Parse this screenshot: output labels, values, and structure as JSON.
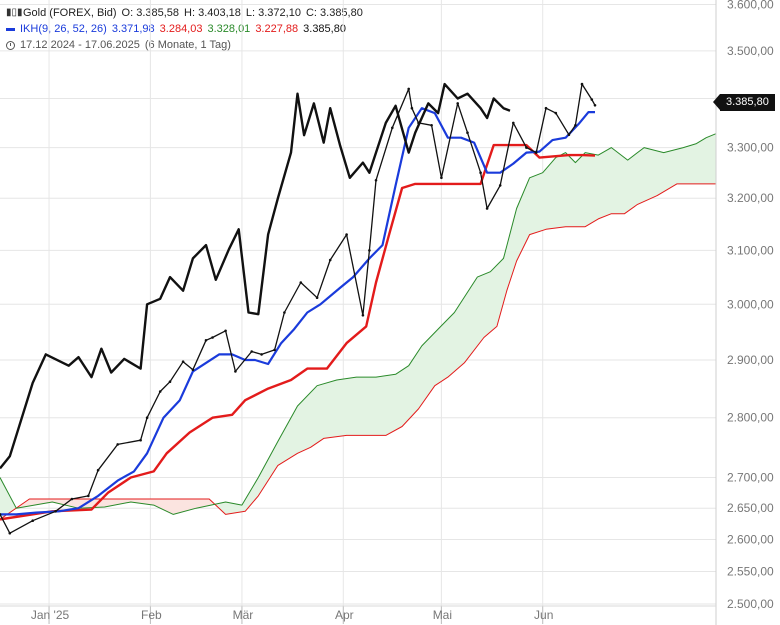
{
  "legend": {
    "instrument": "Gold (FOREX, Bid)",
    "o": "O: 3.385,58",
    "h": "H: 3.403,18",
    "l": "L: 3.372,10",
    "c": "C: 3.385,80",
    "ikh_name": "IKH(9, 26, 52, 26)",
    "ikh_v1": "3.371,98",
    "ikh_v2": "3.284,03",
    "ikh_v3": "3.328,01",
    "ikh_v4": "3.227,88",
    "ikh_v5": "3.385,80",
    "range": "17.12.2024 - 17.06.2025",
    "period": "(6 Monate, 1 Tag)"
  },
  "price_tag": "3.385,80",
  "colors": {
    "price": "#111111",
    "tenkan": "#1a3bdb",
    "kijun": "#e31b1b",
    "span_a": "#2a8a2a",
    "span_b": "#e31b1b",
    "cloud_bull": "#e3f3e3",
    "cloud_bear": "#fbe4e0",
    "grid": "#e6e6e6",
    "axis_text": "#777777"
  },
  "chart_data": {
    "type": "line",
    "title": "Gold (FOREX, Bid)",
    "y_axis": {
      "ticks": [
        2500,
        2550,
        2600,
        2650,
        2700,
        2800,
        2900,
        3000,
        3100,
        3200,
        3300,
        3400,
        3500,
        3600
      ],
      "tick_labels": [
        "2.500,00",
        "2.550,00",
        "2.600,00",
        "2.650,00",
        "2.700,00",
        "2.800,00",
        "2.900,00",
        "3.000,00",
        "3.100,00",
        "3.200,00",
        "3.300,00",
        "3.400,00",
        "3.500,00",
        "3.600,00"
      ],
      "scale": "log",
      "range": [
        2497,
        3610
      ]
    },
    "x_axis": {
      "start": "2024-12-17",
      "end": "2025-07-24",
      "ticks": [
        "2025-01-01",
        "2025-02-01",
        "2025-03-01",
        "2025-04-01",
        "2025-05-01",
        "2025-06-01"
      ],
      "tick_labels": [
        "Jan '25",
        "Feb",
        "Mär",
        "Apr",
        "Mai",
        "Jun"
      ]
    },
    "grid": true,
    "series": [
      {
        "name": "Gold",
        "role": "price",
        "points": [
          [
            "2024-12-17",
            2640
          ],
          [
            "2024-12-20",
            2610
          ],
          [
            "2024-12-27",
            2630
          ],
          [
            "2025-01-03",
            2645
          ],
          [
            "2025-01-08",
            2665
          ],
          [
            "2025-01-13",
            2670
          ],
          [
            "2025-01-16",
            2712
          ],
          [
            "2025-01-22",
            2755
          ],
          [
            "2025-01-29",
            2762
          ],
          [
            "2025-01-31",
            2800
          ],
          [
            "2025-02-04",
            2845
          ],
          [
            "2025-02-07",
            2862
          ],
          [
            "2025-02-11",
            2897
          ],
          [
            "2025-02-14",
            2883
          ],
          [
            "2025-02-18",
            2935
          ],
          [
            "2025-02-20",
            2940
          ],
          [
            "2025-02-24",
            2952
          ],
          [
            "2025-02-27",
            2880
          ],
          [
            "2025-03-04",
            2915
          ],
          [
            "2025-03-07",
            2910
          ],
          [
            "2025-03-11",
            2918
          ],
          [
            "2025-03-14",
            2985
          ],
          [
            "2025-03-19",
            3040
          ],
          [
            "2025-03-24",
            3012
          ],
          [
            "2025-03-28",
            3082
          ],
          [
            "2025-04-02",
            3130
          ],
          [
            "2025-04-07",
            2980
          ],
          [
            "2025-04-09",
            3100
          ],
          [
            "2025-04-11",
            3235
          ],
          [
            "2025-04-16",
            3340
          ],
          [
            "2025-04-21",
            3420
          ],
          [
            "2025-04-22",
            3380
          ],
          [
            "2025-04-24",
            3350
          ],
          [
            "2025-04-28",
            3345
          ],
          [
            "2025-05-01",
            3240
          ],
          [
            "2025-05-06",
            3390
          ],
          [
            "2025-05-09",
            3330
          ],
          [
            "2025-05-13",
            3250
          ],
          [
            "2025-05-15",
            3180
          ],
          [
            "2025-05-19",
            3225
          ],
          [
            "2025-05-23",
            3350
          ],
          [
            "2025-05-27",
            3300
          ],
          [
            "2025-05-30",
            3290
          ],
          [
            "2025-06-02",
            3380
          ],
          [
            "2025-06-05",
            3370
          ],
          [
            "2025-06-09",
            3326
          ],
          [
            "2025-06-11",
            3345
          ],
          [
            "2025-06-13",
            3430
          ],
          [
            "2025-06-16",
            3398
          ],
          [
            "2025-06-17",
            3386
          ]
        ]
      },
      {
        "name": "",
        "role": "chikou",
        "points": [
          [
            "2024-12-17",
            2715
          ],
          [
            "2024-12-20",
            2735
          ],
          [
            "2024-12-27",
            2860
          ],
          [
            "2024-12-31",
            2910
          ],
          [
            "2025-01-07",
            2890
          ],
          [
            "2025-01-10",
            2905
          ],
          [
            "2025-01-14",
            2870
          ],
          [
            "2025-01-17",
            2920
          ],
          [
            "2025-01-20",
            2878
          ],
          [
            "2025-01-24",
            2902
          ],
          [
            "2025-01-29",
            2885
          ],
          [
            "2025-01-31",
            3000
          ],
          [
            "2025-02-04",
            3010
          ],
          [
            "2025-02-07",
            3050
          ],
          [
            "2025-02-11",
            3025
          ],
          [
            "2025-02-14",
            3085
          ],
          [
            "2025-02-18",
            3110
          ],
          [
            "2025-02-21",
            3045
          ],
          [
            "2025-02-25",
            3102
          ],
          [
            "2025-02-28",
            3140
          ],
          [
            "2025-03-03",
            2985
          ],
          [
            "2025-03-06",
            2982
          ],
          [
            "2025-03-09",
            3130
          ],
          [
            "2025-03-12",
            3200
          ],
          [
            "2025-03-16",
            3290
          ],
          [
            "2025-03-18",
            3410
          ],
          [
            "2025-03-20",
            3325
          ],
          [
            "2025-03-23",
            3390
          ],
          [
            "2025-03-26",
            3310
          ],
          [
            "2025-03-28",
            3380
          ],
          [
            "2025-03-31",
            3305
          ],
          [
            "2025-04-03",
            3240
          ],
          [
            "2025-04-07",
            3270
          ],
          [
            "2025-04-09",
            3250
          ],
          [
            "2025-04-11",
            3290
          ],
          [
            "2025-04-14",
            3350
          ],
          [
            "2025-04-17",
            3385
          ],
          [
            "2025-04-21",
            3290
          ],
          [
            "2025-04-23",
            3330
          ],
          [
            "2025-04-27",
            3390
          ],
          [
            "2025-04-30",
            3370
          ],
          [
            "2025-05-02",
            3430
          ],
          [
            "2025-05-06",
            3400
          ],
          [
            "2025-05-09",
            3410
          ],
          [
            "2025-05-13",
            3380
          ],
          [
            "2025-05-15",
            3360
          ],
          [
            "2025-05-17",
            3400
          ],
          [
            "2025-05-20",
            3380
          ],
          [
            "2025-05-22",
            3375
          ]
        ]
      },
      {
        "name": "",
        "role": "tenkan",
        "points": [
          [
            "2024-12-17",
            2640
          ],
          [
            "2024-12-22",
            2640
          ],
          [
            "2024-12-28",
            2643
          ],
          [
            "2025-01-04",
            2645
          ],
          [
            "2025-01-10",
            2650
          ],
          [
            "2025-01-16",
            2670
          ],
          [
            "2025-01-22",
            2695
          ],
          [
            "2025-01-27",
            2710
          ],
          [
            "2025-01-31",
            2740
          ],
          [
            "2025-02-05",
            2800
          ],
          [
            "2025-02-10",
            2830
          ],
          [
            "2025-02-14",
            2880
          ],
          [
            "2025-02-18",
            2895
          ],
          [
            "2025-02-22",
            2910
          ],
          [
            "2025-02-26",
            2910
          ],
          [
            "2025-03-02",
            2900
          ],
          [
            "2025-03-05",
            2900
          ],
          [
            "2025-03-09",
            2893
          ],
          [
            "2025-03-13",
            2930
          ],
          [
            "2025-03-17",
            2955
          ],
          [
            "2025-03-21",
            2985
          ],
          [
            "2025-03-25",
            3000
          ],
          [
            "2025-03-31",
            3030
          ],
          [
            "2025-04-04",
            3050
          ],
          [
            "2025-04-09",
            3085
          ],
          [
            "2025-04-13",
            3110
          ],
          [
            "2025-04-17",
            3225
          ],
          [
            "2025-04-21",
            3340
          ],
          [
            "2025-04-25",
            3380
          ],
          [
            "2025-04-29",
            3370
          ],
          [
            "2025-05-03",
            3320
          ],
          [
            "2025-05-07",
            3320
          ],
          [
            "2025-05-11",
            3310
          ],
          [
            "2025-05-15",
            3250
          ],
          [
            "2025-05-19",
            3250
          ],
          [
            "2025-05-23",
            3268
          ],
          [
            "2025-05-27",
            3290
          ],
          [
            "2025-05-31",
            3292
          ],
          [
            "2025-06-04",
            3315
          ],
          [
            "2025-06-08",
            3320
          ],
          [
            "2025-06-12",
            3348
          ],
          [
            "2025-06-15",
            3372
          ],
          [
            "2025-06-17",
            3372
          ]
        ]
      },
      {
        "name": "",
        "role": "kijun",
        "points": [
          [
            "2024-12-17",
            2632
          ],
          [
            "2025-01-02",
            2645
          ],
          [
            "2025-01-14",
            2648
          ],
          [
            "2025-01-19",
            2675
          ],
          [
            "2025-01-26",
            2700
          ],
          [
            "2025-02-02",
            2710
          ],
          [
            "2025-02-06",
            2740
          ],
          [
            "2025-02-13",
            2775
          ],
          [
            "2025-02-20",
            2800
          ],
          [
            "2025-02-26",
            2805
          ],
          [
            "2025-03-02",
            2830
          ],
          [
            "2025-03-09",
            2850
          ],
          [
            "2025-03-16",
            2865
          ],
          [
            "2025-03-21",
            2885
          ],
          [
            "2025-03-27",
            2885
          ],
          [
            "2025-04-02",
            2930
          ],
          [
            "2025-04-08",
            2960
          ],
          [
            "2025-04-11",
            3040
          ],
          [
            "2025-04-15",
            3130
          ],
          [
            "2025-04-19",
            3220
          ],
          [
            "2025-04-23",
            3228
          ],
          [
            "2025-05-01",
            3228
          ],
          [
            "2025-05-13",
            3228
          ],
          [
            "2025-05-17",
            3305
          ],
          [
            "2025-05-27",
            3305
          ],
          [
            "2025-05-31",
            3280
          ],
          [
            "2025-06-09",
            3285
          ],
          [
            "2025-06-13",
            3285
          ],
          [
            "2025-06-17",
            3284
          ]
        ]
      },
      {
        "name": "",
        "role": "senkou_a",
        "points": [
          [
            "2024-12-17",
            2700
          ],
          [
            "2024-12-22",
            2650
          ],
          [
            "2025-01-02",
            2660
          ],
          [
            "2025-01-10",
            2650
          ],
          [
            "2025-01-18",
            2652
          ],
          [
            "2025-01-26",
            2660
          ],
          [
            "2025-02-02",
            2655
          ],
          [
            "2025-02-08",
            2640
          ],
          [
            "2025-02-15",
            2650
          ],
          [
            "2025-02-24",
            2660
          ],
          [
            "2025-03-01",
            2655
          ],
          [
            "2025-03-06",
            2700
          ],
          [
            "2025-03-12",
            2760
          ],
          [
            "2025-03-18",
            2820
          ],
          [
            "2025-03-24",
            2855
          ],
          [
            "2025-03-30",
            2865
          ],
          [
            "2025-04-05",
            2870
          ],
          [
            "2025-04-11",
            2870
          ],
          [
            "2025-04-17",
            2875
          ],
          [
            "2025-04-21",
            2890
          ],
          [
            "2025-04-25",
            2925
          ],
          [
            "2025-04-30",
            2955
          ],
          [
            "2025-05-05",
            2985
          ],
          [
            "2025-05-12",
            3050
          ],
          [
            "2025-05-16",
            3060
          ],
          [
            "2025-05-20",
            3085
          ],
          [
            "2025-05-24",
            3180
          ],
          [
            "2025-05-28",
            3240
          ],
          [
            "2025-06-01",
            3250
          ],
          [
            "2025-06-05",
            3280
          ],
          [
            "2025-06-08",
            3290
          ],
          [
            "2025-06-11",
            3270
          ],
          [
            "2025-06-14",
            3290
          ],
          [
            "2025-06-18",
            3285
          ],
          [
            "2025-06-22",
            3300
          ],
          [
            "2025-06-27",
            3275
          ],
          [
            "2025-07-02",
            3300
          ],
          [
            "2025-07-08",
            3290
          ],
          [
            "2025-07-14",
            3300
          ],
          [
            "2025-07-18",
            3308
          ],
          [
            "2025-07-21",
            3320
          ],
          [
            "2025-07-24",
            3328
          ]
        ]
      },
      {
        "name": "",
        "role": "senkou_b",
        "points": [
          [
            "2024-12-17",
            2632
          ],
          [
            "2024-12-26",
            2665
          ],
          [
            "2025-01-20",
            2665
          ],
          [
            "2025-02-19",
            2665
          ],
          [
            "2025-02-24",
            2640
          ],
          [
            "2025-03-02",
            2645
          ],
          [
            "2025-03-06",
            2670
          ],
          [
            "2025-03-12",
            2720
          ],
          [
            "2025-03-18",
            2740
          ],
          [
            "2025-03-22",
            2750
          ],
          [
            "2025-03-26",
            2765
          ],
          [
            "2025-04-02",
            2770
          ],
          [
            "2025-04-08",
            2770
          ],
          [
            "2025-04-14",
            2770
          ],
          [
            "2025-04-19",
            2785
          ],
          [
            "2025-04-24",
            2815
          ],
          [
            "2025-04-29",
            2855
          ],
          [
            "2025-05-03",
            2870
          ],
          [
            "2025-05-08",
            2895
          ],
          [
            "2025-05-14",
            2940
          ],
          [
            "2025-05-18",
            2960
          ],
          [
            "2025-05-21",
            3025
          ],
          [
            "2025-05-24",
            3080
          ],
          [
            "2025-05-28",
            3130
          ],
          [
            "2025-06-02",
            3140
          ],
          [
            "2025-06-08",
            3145
          ],
          [
            "2025-06-14",
            3145
          ],
          [
            "2025-06-18",
            3160
          ],
          [
            "2025-06-22",
            3170
          ],
          [
            "2025-06-26",
            3170
          ],
          [
            "2025-06-30",
            3188
          ],
          [
            "2025-07-06",
            3205
          ],
          [
            "2025-07-12",
            3228
          ],
          [
            "2025-07-24",
            3228
          ]
        ]
      }
    ]
  }
}
